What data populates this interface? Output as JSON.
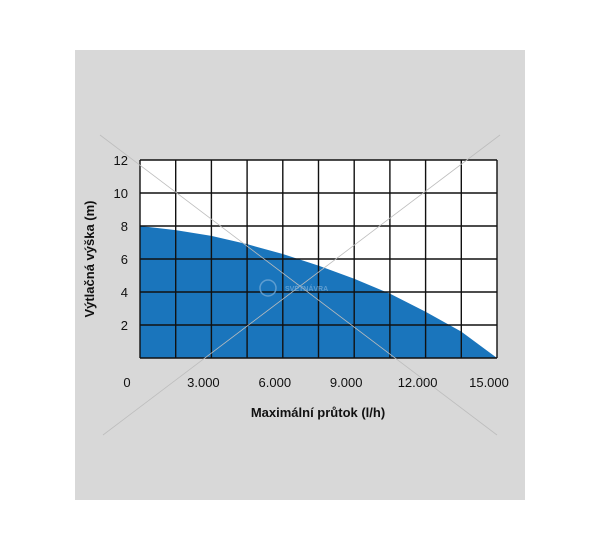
{
  "chart_data": {
    "type": "area",
    "xlabel": "Maximální průtok (l/h)",
    "ylabel": "Výtlačná výška (m)",
    "xlim": [
      0,
      15000
    ],
    "ylim": [
      0,
      12
    ],
    "x_ticks": [
      0,
      3000,
      6000,
      9000,
      12000,
      15000
    ],
    "x_tick_labels": [
      "0",
      "3.000",
      "6.000",
      "9.000",
      "12.000",
      "15.000"
    ],
    "y_ticks": [
      2,
      4,
      6,
      8,
      10,
      12
    ],
    "y_tick_labels": [
      "2",
      "4",
      "6",
      "8",
      "10",
      "12"
    ],
    "grid": true,
    "grid_x_step": 1500,
    "grid_y_step": 2,
    "series": [
      {
        "color": "#1a75bc",
        "x": [
          0,
          1500,
          3000,
          4500,
          6000,
          7500,
          9000,
          10500,
          12000,
          13500,
          15000
        ],
        "y": [
          8.0,
          7.75,
          7.4,
          6.9,
          6.3,
          5.6,
          4.8,
          3.9,
          2.8,
          1.6,
          0
        ]
      }
    ]
  },
  "watermark": {
    "text": "SVÉTNÁVRA"
  },
  "colors": {
    "background": "#d8d8d8",
    "plot_area": "#ffffff",
    "grid": "#111111",
    "fill": "#1a75bc"
  }
}
